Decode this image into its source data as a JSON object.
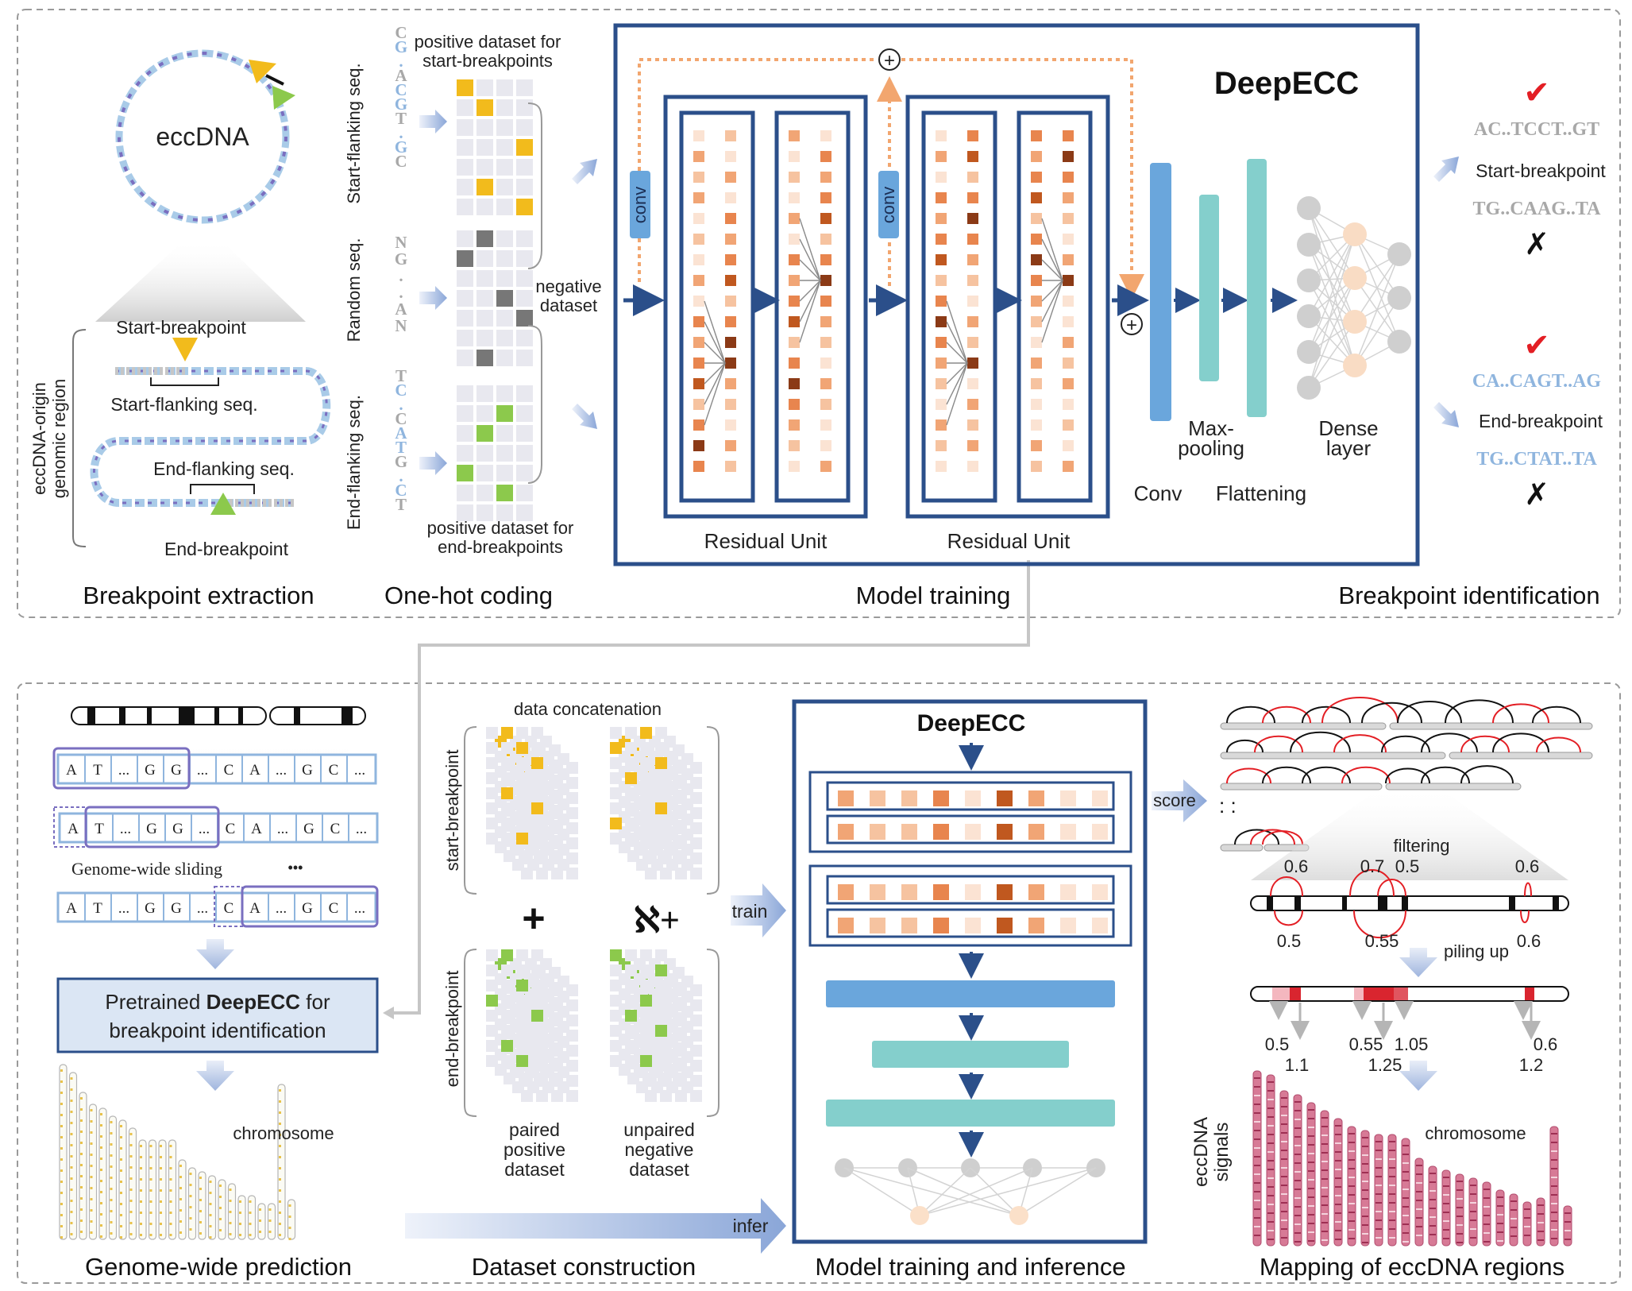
{
  "top": {
    "breakpoint_extraction": {
      "title": "Breakpoint extraction",
      "eccdna": "eccDNA",
      "start_breakpoint": "Start-breakpoint",
      "start_flanking": "Start-flanking seq.",
      "end_flanking": "End-flanking seq.",
      "end_breakpoint": "End-breakpoint",
      "region_line1": "eccDNA-origin",
      "region_line2": "genomic region"
    },
    "one_hot": {
      "title": "One-hot coding",
      "start_flanking_label": "Start-flanking seq.",
      "random_label": "Random seq.",
      "end_flanking_label": "End-flanking seq.",
      "start_seq": [
        "C",
        "G",
        ".",
        "A",
        "C",
        "G",
        "T",
        ".",
        "G",
        "C"
      ],
      "random_seq": [
        "N",
        "G",
        ".",
        ".",
        "A",
        "N"
      ],
      "end_seq": [
        "T",
        "C",
        ".",
        "C",
        "A",
        "T",
        "G",
        ".",
        "C",
        "T"
      ],
      "pos_start_line1": "positive dataset for",
      "pos_start_line2": "start-breakpoints",
      "negative_line1": "negative",
      "negative_line2": "dataset",
      "pos_end_line1": "positive dataset for",
      "pos_end_line2": "end-breakpoints"
    },
    "model_training": {
      "title": "Model training",
      "model_name": "DeepECC",
      "conv_block": "conv",
      "residual_unit": "Residual Unit",
      "conv": "Conv",
      "maxpool_line1": "Max-",
      "maxpool_line2": "pooling",
      "flattening": "Flattening",
      "dense_line1": "Dense",
      "dense_line2": "layer",
      "plus": "+"
    },
    "breakpoint_identification": {
      "title": "Breakpoint identification",
      "start_pos_seq": "AC..TCCT..GT",
      "start_label": "Start-breakpoint",
      "start_neg_seq": "TG..CAAG..TA",
      "end_pos_seq": "CA..CAGT..AG",
      "end_label": "End-breakpoint",
      "end_neg_seq": "TG..CTAT..TA",
      "check": "✔",
      "cross": "✗"
    }
  },
  "bottom": {
    "genome_wide": {
      "title": "Genome-wide prediction",
      "rows": [
        [
          "A",
          "T",
          "...",
          "G",
          "G",
          "...",
          "C",
          "A",
          "...",
          "G",
          "C",
          "..."
        ],
        [
          "A",
          "T",
          "...",
          "G",
          "G",
          "...",
          "C",
          "A",
          "...",
          "G",
          "C",
          "..."
        ],
        [
          "A",
          "T",
          "...",
          "G",
          "G",
          "...",
          "C",
          "A",
          "...",
          "G",
          "C",
          "..."
        ]
      ],
      "sliding": "Genome-wide sliding",
      "ellipsis": "•••",
      "pretrained_pre": "Pretrained ",
      "pretrained_bold": "DeepECC",
      "pretrained_post": " for",
      "pretrained_line2": "breakpoint identification",
      "chromosome": "chromosome"
    },
    "dataset": {
      "title": "Dataset construction",
      "data_concat": "data concatenation",
      "start_bp": "start-breakpoint",
      "end_bp": "end-breakpoint",
      "plus": "+",
      "aleph_plus": "ℵ+",
      "paired_line1": "paired",
      "paired_line2": "positive",
      "paired_line3": "dataset",
      "unpaired_line1": "unpaired",
      "unpaired_line2": "negative",
      "unpaired_line3": "dataset",
      "train": "train",
      "infer": "infer"
    },
    "model": {
      "title": "Model training and inference",
      "name": "DeepECC"
    },
    "mapping": {
      "title": "Mapping of eccDNA regions",
      "score": "score",
      "dots": ":  :",
      "filtering": "filtering",
      "piling": "piling up",
      "top_values": [
        "0.6",
        "0.7",
        "0.5",
        "0.6"
      ],
      "bottom_values": [
        "0.5",
        "0.55",
        "0.6"
      ],
      "pile_values_a": [
        "0.5",
        "0.55",
        "1.05",
        "0.6"
      ],
      "pile_values_b": [
        "1.1",
        "1.25",
        "1.2"
      ],
      "chromosome": "chromosome",
      "signals_line1": "eccDNA",
      "signals_line2": "signals"
    }
  },
  "colors": {
    "frame_blue": "#2b4f8a",
    "orange": "#f2a66f",
    "teal": "#84cfcc",
    "conv_blue": "#6aa6dc",
    "yellow": "#f2bb1c",
    "green": "#8cc94c",
    "gray_cell": "#e8e8ef",
    "red": "#e31e24",
    "light_blue_text": "#8fb5de",
    "gray_text": "#a8a8a8",
    "chrom_pink": "#c8567a"
  }
}
